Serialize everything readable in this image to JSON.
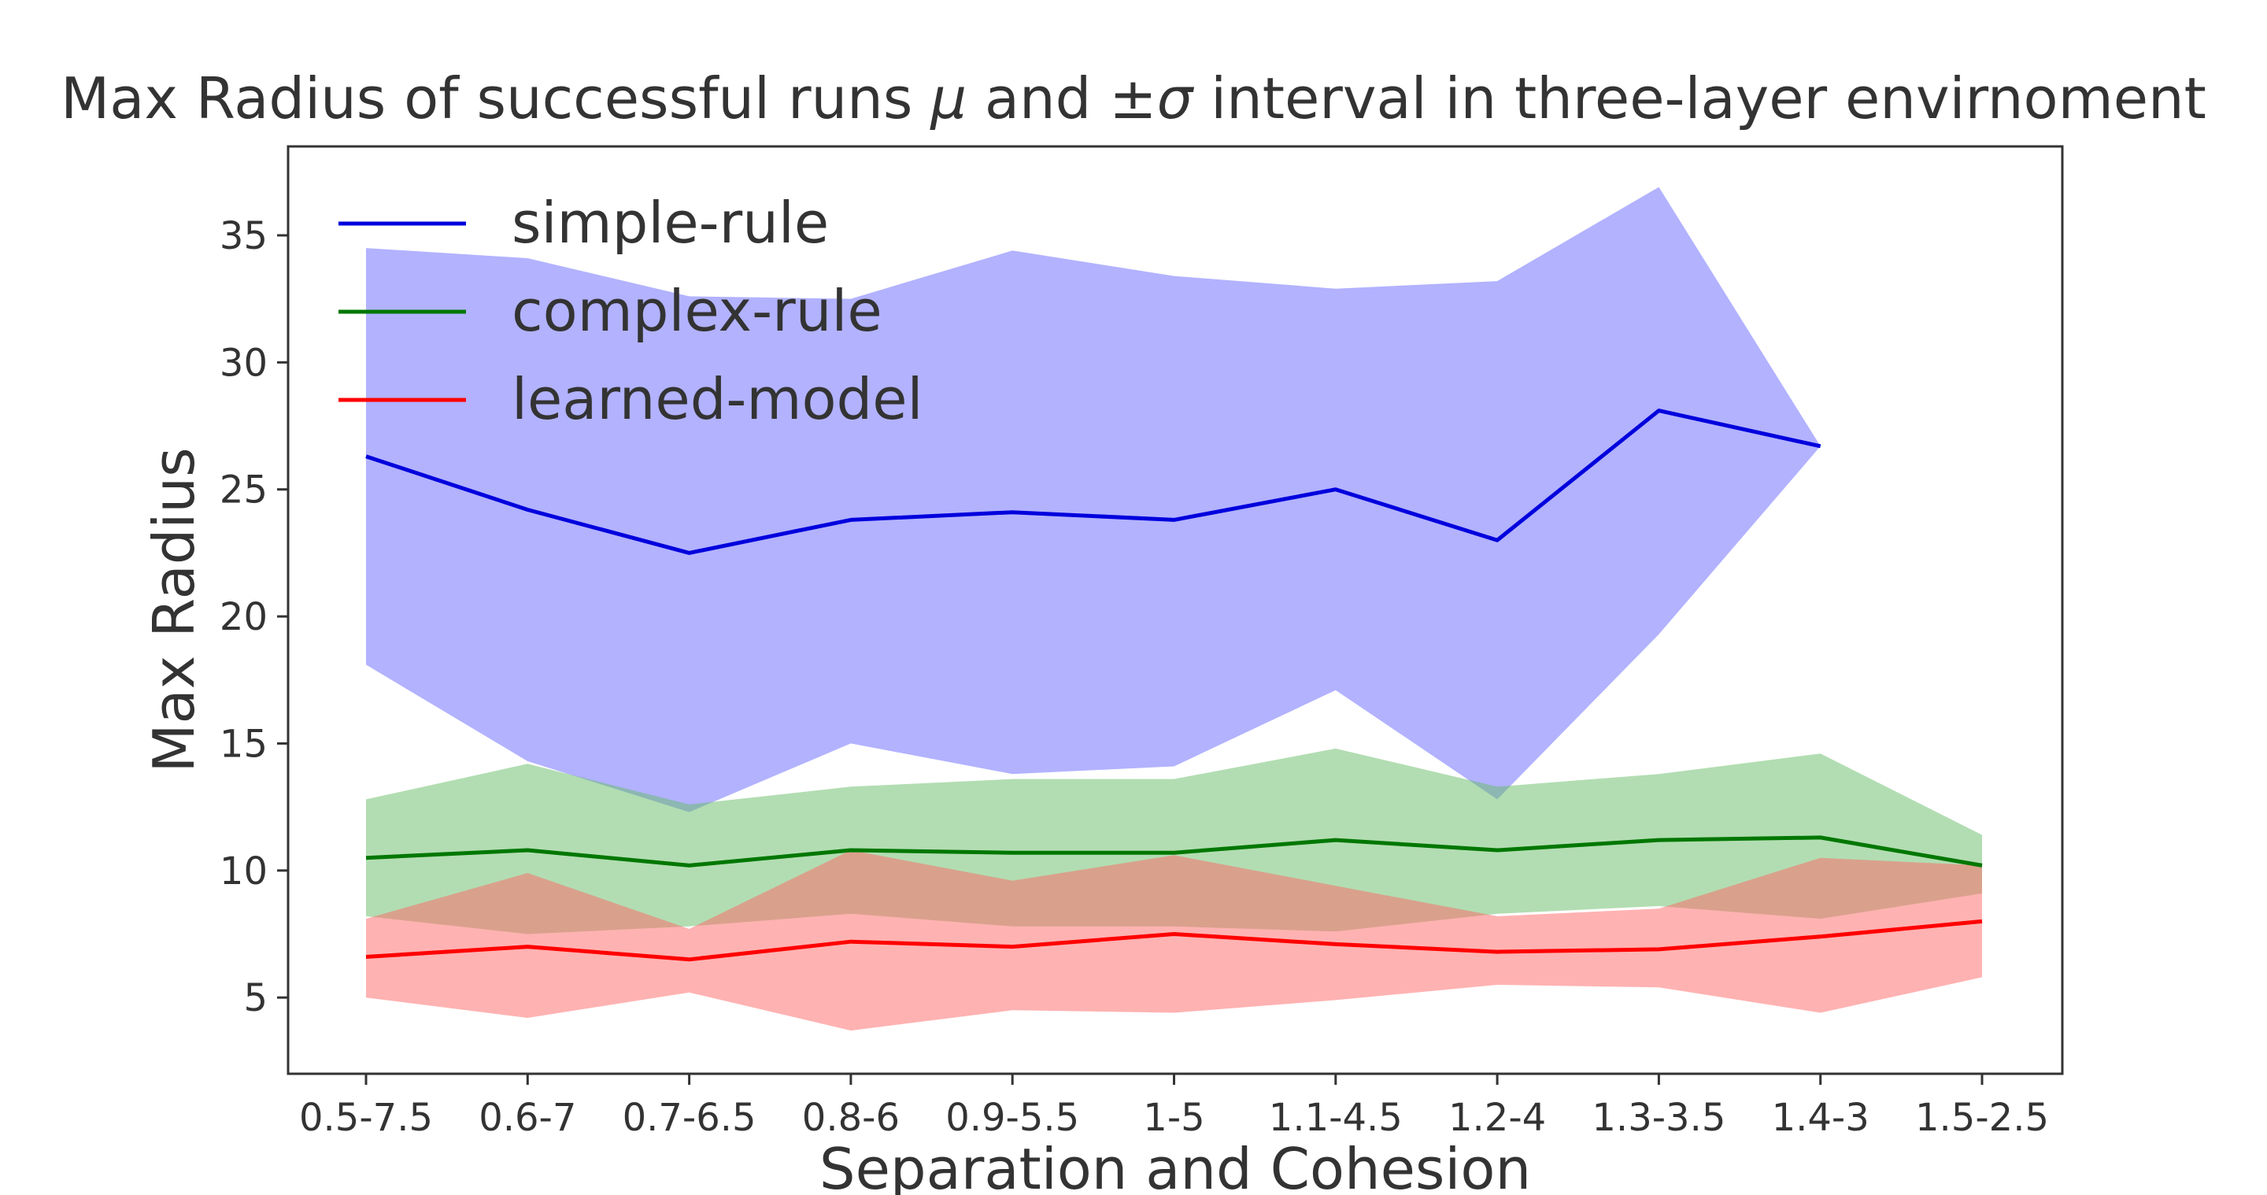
{
  "chart_data": {
    "type": "line",
    "title_prefix": "Max Radius of successful runs ",
    "title_mu": "μ",
    "title_middle": " and ±",
    "title_sigma": "σ",
    "title_suffix": " interval in three-layer envirnoment",
    "xlabel": "Separation and Cohesion",
    "ylabel": "Max Radius",
    "categories": [
      "0.5-7.5",
      "0.6-7",
      "0.7-6.5",
      "0.8-6",
      "0.9-5.5",
      "1-5",
      "1.1-4.5",
      "1.2-4",
      "1.3-3.5",
      "1.4-3",
      "1.5-2.5"
    ],
    "ylim": [
      2,
      38.5
    ],
    "yticks": [
      5,
      10,
      15,
      20,
      25,
      30,
      35
    ],
    "grid": false,
    "legend_position": "top-left",
    "series": [
      {
        "name": "simple-rule",
        "color": "#0000dd",
        "band_color": "#6666ff",
        "band_opacity": 0.5,
        "mean": [
          26.3,
          24.2,
          22.5,
          23.8,
          24.1,
          23.8,
          25.0,
          23.0,
          28.1,
          26.7,
          null
        ],
        "lower": [
          18.1,
          14.3,
          12.3,
          15.0,
          13.8,
          14.1,
          17.1,
          12.8,
          19.3,
          26.7,
          null
        ],
        "upper": [
          34.5,
          34.1,
          32.6,
          32.5,
          34.4,
          33.4,
          32.9,
          33.2,
          36.9,
          26.7,
          null
        ]
      },
      {
        "name": "complex-rule",
        "color": "#007700",
        "band_color": "#66bb66",
        "band_opacity": 0.5,
        "mean": [
          10.5,
          10.8,
          10.2,
          10.8,
          10.7,
          10.7,
          11.2,
          10.8,
          11.2,
          11.3,
          10.2
        ],
        "lower": [
          8.2,
          7.5,
          7.8,
          8.3,
          7.8,
          7.8,
          7.6,
          8.3,
          8.6,
          8.1,
          9.1
        ],
        "upper": [
          12.8,
          14.2,
          12.6,
          13.3,
          13.6,
          13.6,
          14.8,
          13.3,
          13.8,
          14.6,
          11.4
        ]
      },
      {
        "name": "learned-model",
        "color": "#ff0000",
        "band_color": "#ff6666",
        "band_opacity": 0.5,
        "mean": [
          6.6,
          7.0,
          6.5,
          7.2,
          7.0,
          7.5,
          7.1,
          6.8,
          6.9,
          7.4,
          8.0
        ],
        "lower": [
          5.0,
          4.2,
          5.2,
          3.7,
          4.5,
          4.4,
          4.9,
          5.5,
          5.4,
          4.4,
          5.8
        ],
        "upper": [
          8.1,
          9.9,
          7.7,
          10.8,
          9.6,
          10.6,
          9.4,
          8.2,
          8.5,
          10.5,
          10.2
        ]
      }
    ]
  }
}
